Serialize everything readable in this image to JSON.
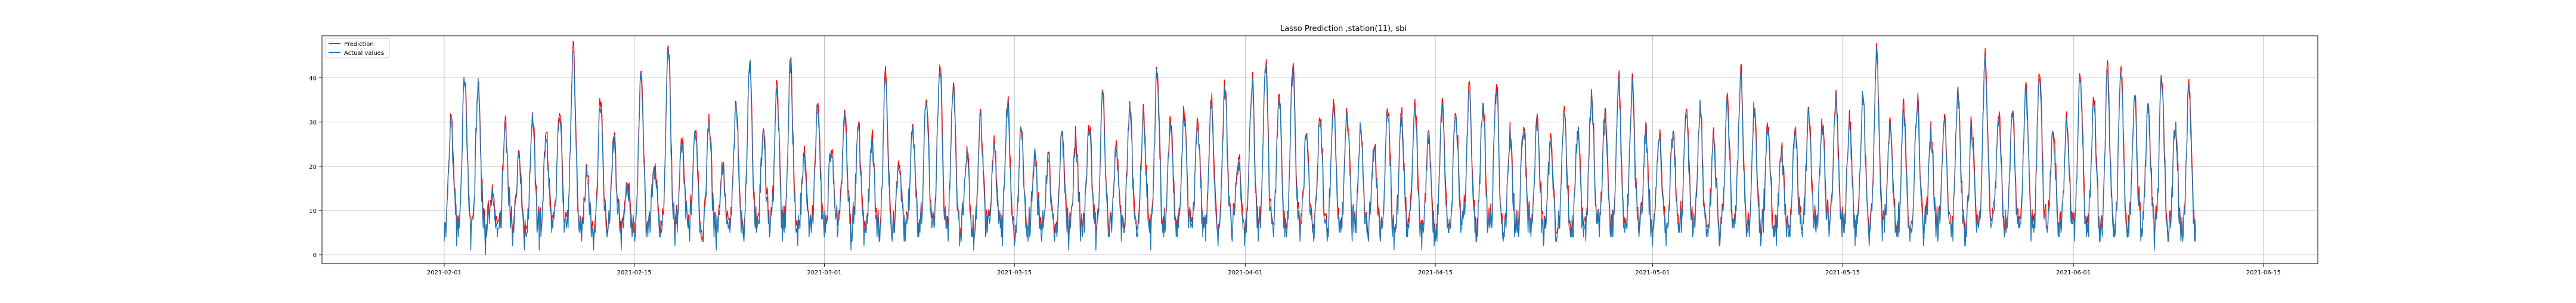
{
  "chart_data": {
    "type": "line",
    "title": "Lasso Prediction ,station(11), sbi",
    "xlabel": "",
    "ylabel": "",
    "xlim": [
      "2021-01-23",
      "2021-06-19"
    ],
    "ylim": [
      -2,
      49.5
    ],
    "grid": true,
    "legend_placement": "upper left",
    "x_ticks": [
      "2021-02-01",
      "2021-02-15",
      "2021-03-01",
      "2021-03-15",
      "2021-04-01",
      "2021-04-15",
      "2021-05-01",
      "2021-05-15",
      "2021-06-01",
      "2021-06-15"
    ],
    "y_ticks": [
      0,
      10,
      20,
      30,
      40
    ],
    "time_step_hours": 1,
    "series_start": "2021-02-01",
    "series": [
      {
        "name": "Prediction",
        "color": "#ff0000",
        "role": "prediction",
        "values": []
      },
      {
        "name": "Actual values",
        "color": "#1f77b4",
        "role": "actual",
        "values": []
      }
    ],
    "daily_peaks": [
      [
        3,
        29
      ],
      [
        5,
        40
      ],
      [
        7,
        38
      ],
      [
        9,
        13
      ],
      [
        11,
        28
      ],
      [
        13,
        23
      ],
      [
        15,
        31
      ],
      [
        17,
        26
      ],
      [
        19,
        33
      ],
      [
        21,
        46
      ],
      [
        23,
        18
      ],
      [
        25,
        34
      ],
      [
        27,
        25
      ],
      [
        29,
        15
      ],
      [
        31,
        41
      ],
      [
        33,
        19
      ],
      [
        35,
        47
      ],
      [
        37,
        24
      ],
      [
        39,
        28
      ],
      [
        41,
        30
      ],
      [
        43,
        20
      ],
      [
        45,
        33
      ],
      [
        47,
        43
      ],
      [
        49,
        27
      ],
      [
        51,
        38
      ],
      [
        53,
        43
      ],
      [
        55,
        22
      ],
      [
        57,
        33
      ],
      [
        59,
        24
      ],
      [
        61,
        31
      ],
      [
        63,
        28
      ],
      [
        65,
        25
      ],
      [
        67,
        41
      ],
      [
        69,
        20
      ],
      [
        71,
        29
      ],
      [
        73,
        35
      ],
      [
        75,
        42
      ],
      [
        77,
        39
      ],
      [
        79,
        24
      ],
      [
        81,
        31
      ],
      [
        83,
        23
      ],
      [
        85,
        34
      ],
      [
        87,
        29
      ],
      [
        89,
        22
      ],
      [
        91,
        21
      ],
      [
        93,
        27
      ],
      [
        95,
        26
      ],
      [
        97,
        29
      ],
      [
        99,
        36
      ],
      [
        101,
        23
      ],
      [
        103,
        33
      ],
      [
        105,
        31
      ],
      [
        107,
        42
      ],
      [
        109,
        30
      ],
      [
        111,
        32
      ],
      [
        113,
        28
      ],
      [
        115,
        34
      ],
      [
        117,
        37
      ],
      [
        119,
        21
      ],
      [
        121,
        39
      ],
      [
        123,
        42
      ],
      [
        125,
        36
      ],
      [
        127,
        41
      ],
      [
        129,
        27
      ],
      [
        131,
        30
      ],
      [
        133,
        34
      ],
      [
        135,
        31
      ],
      [
        137,
        29
      ],
      [
        139,
        24
      ],
      [
        141,
        33
      ],
      [
        143,
        31
      ],
      [
        145,
        34
      ],
      [
        147,
        27
      ],
      [
        149,
        33
      ],
      [
        151,
        32
      ],
      [
        153,
        36
      ],
      [
        155,
        34
      ],
      [
        157,
        37
      ],
      [
        159,
        27
      ],
      [
        161,
        29
      ],
      [
        163,
        30
      ],
      [
        165,
        26
      ],
      [
        167,
        32
      ],
      [
        169,
        28
      ],
      [
        171,
        36
      ],
      [
        173,
        30
      ],
      [
        175,
        39
      ],
      [
        177,
        38
      ],
      [
        179,
        28
      ],
      [
        181,
        25
      ],
      [
        183,
        27
      ],
      [
        185,
        31
      ],
      [
        187,
        33
      ],
      [
        189,
        25
      ],
      [
        191,
        34
      ],
      [
        193,
        40
      ],
      [
        195,
        33
      ],
      [
        197,
        29
      ],
      [
        199,
        22
      ],
      [
        201,
        28
      ],
      [
        203,
        32
      ],
      [
        205,
        30
      ],
      [
        207,
        35
      ],
      [
        209,
        30
      ],
      [
        211,
        36
      ],
      [
        213,
        46
      ],
      [
        215,
        29
      ],
      [
        217,
        32
      ],
      [
        219,
        35
      ],
      [
        221,
        27
      ],
      [
        223,
        31
      ],
      [
        225,
        36
      ],
      [
        227,
        28
      ],
      [
        229,
        44
      ],
      [
        231,
        32
      ],
      [
        233,
        33
      ],
      [
        235,
        36
      ],
      [
        237,
        41
      ],
      [
        239,
        27
      ],
      [
        241,
        30
      ],
      [
        243,
        41
      ],
      [
        245,
        34
      ],
      [
        247,
        40
      ],
      [
        249,
        42
      ],
      [
        251,
        35
      ],
      [
        253,
        33
      ],
      [
        255,
        40
      ],
      [
        257,
        29
      ],
      [
        259,
        38
      ],
      [
        261,
        37
      ],
      [
        263,
        33
      ],
      [
        265,
        40
      ],
      [
        267,
        35
      ],
      [
        269,
        33
      ],
      [
        271,
        41
      ],
      [
        273,
        30
      ],
      [
        275,
        26
      ],
      [
        277,
        38
      ],
      [
        279,
        36
      ],
      [
        281,
        33
      ],
      [
        283,
        35
      ],
      [
        285,
        41
      ],
      [
        287,
        36
      ],
      [
        289,
        28
      ],
      [
        291,
        30
      ],
      [
        293,
        35
      ],
      [
        295,
        39
      ],
      [
        297,
        41
      ],
      [
        299,
        33
      ],
      [
        301,
        35
      ],
      [
        303,
        41
      ],
      [
        305,
        29
      ],
      [
        307,
        24
      ],
      [
        309,
        31
      ],
      [
        311,
        28
      ],
      [
        313,
        33
      ],
      [
        315,
        27
      ]
    ]
  }
}
